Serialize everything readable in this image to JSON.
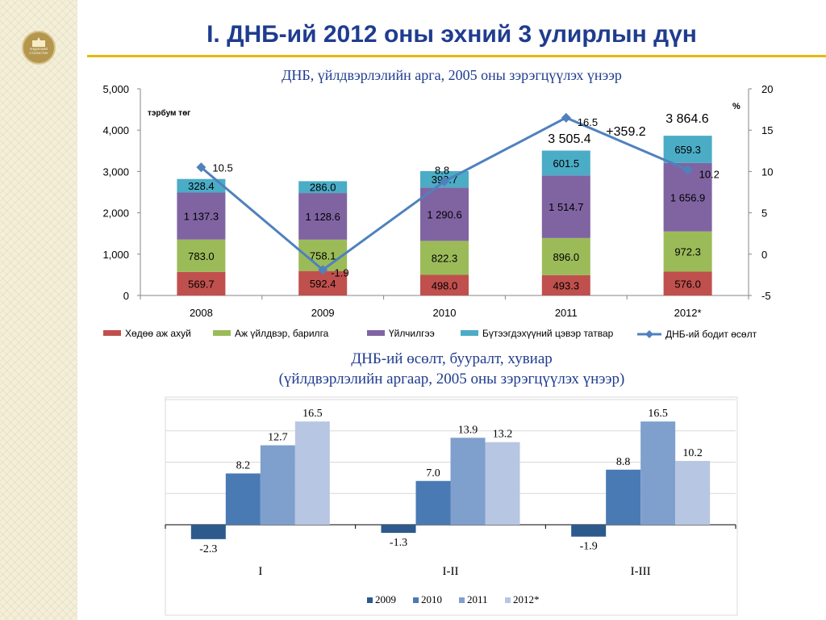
{
  "slide": {
    "title": "I. ДНБ-ий 2012 оны эхний 3 улирлын дүн",
    "logo_text": "ҮНДЭСНИЙ СТАТИСТИК"
  },
  "colors": {
    "agriculture": "#c0504d",
    "industry": "#9bbb59",
    "services": "#8064a2",
    "taxes": "#4bacc6",
    "growth": "#4f81bd",
    "c2009": "#2c5a8c",
    "c2010": "#4a7ab4",
    "c2011": "#7f9fcd",
    "c2012": "#b7c6e2",
    "title": "#1f3c8f"
  },
  "chart_data": [
    {
      "type": "bar",
      "stacked": true,
      "title": "ДНБ, үйлдвэрлэлийн арга, 2005 оны зэрэгцүүлэх үнээр",
      "left_unit": "тэрбум төг",
      "right_unit": "%",
      "categories": [
        "2008",
        "2009",
        "2010",
        "2011",
        "2012*"
      ],
      "ylim": [
        0,
        5000
      ],
      "yticks": [
        "0",
        "1,000",
        "2,000",
        "3,000",
        "4,000",
        "5,000"
      ],
      "y2lim": [
        -5,
        20
      ],
      "y2ticks": [
        "-5",
        "0",
        "5",
        "10",
        "15",
        "20"
      ],
      "series": [
        {
          "name": "Хөдөө аж ахуй",
          "key": "agriculture",
          "values": [
            569.7,
            592.4,
            498.0,
            493.3,
            576.0
          ],
          "labels": [
            "569.7",
            "592.4",
            "498.0",
            "493.3",
            "576.0"
          ]
        },
        {
          "name": "Аж үйлдвэр, барилга",
          "key": "industry",
          "values": [
            783.0,
            758.1,
            822.3,
            896.0,
            972.3
          ],
          "labels": [
            "783.0",
            "758.1",
            "822.3",
            "896.0",
            "972.3"
          ]
        },
        {
          "name": "Үйлчилгээ",
          "key": "services",
          "values": [
            1137.3,
            1128.6,
            1290.6,
            1514.7,
            1656.9
          ],
          "labels": [
            "1 137.3",
            "1 128.6",
            "1 290.6",
            "1 514.7",
            "1 656.9"
          ]
        },
        {
          "name": "Бүтээгдэхүүний цэвэр татвар",
          "key": "taxes",
          "values": [
            328.4,
            286.0,
            398.7,
            601.5,
            659.3
          ],
          "labels": [
            "328.4",
            "286.0",
            "398.7",
            "601.5",
            "659.3"
          ]
        }
      ],
      "line": {
        "name": "ДНБ-ий бодит өсөлт",
        "values": [
          10.5,
          -1.9,
          8.8,
          16.5,
          10.2
        ],
        "labels": [
          "10.5",
          "-1.9",
          "8.8",
          "16.5",
          "10.2"
        ]
      },
      "annotations": [
        "3 505.4",
        "3 864.6",
        "+359.2"
      ]
    },
    {
      "type": "bar",
      "title_line1": "ДНБ-ий өсөлт, бууралт, хувиар",
      "title_line2": "(үйлдвэрлэлийн аргаар, 2005 оны зэрэгцүүлэх үнээр)",
      "categories": [
        "I",
        "I-II",
        "I-III"
      ],
      "ylim": [
        -4,
        20
      ],
      "series": [
        {
          "name": "2009",
          "key": "c2009",
          "values": [
            -2.3,
            -1.3,
            -1.9
          ],
          "labels": [
            "-2.3",
            "-1.3",
            "-1.9"
          ]
        },
        {
          "name": "2010",
          "key": "c2010",
          "values": [
            8.2,
            7.0,
            8.8
          ],
          "labels": [
            "8.2",
            "7.0",
            "8.8"
          ]
        },
        {
          "name": "2011",
          "key": "c2011",
          "values": [
            12.7,
            13.9,
            16.5
          ],
          "labels": [
            "12.7",
            "13.9",
            "16.5"
          ]
        },
        {
          "name": "2012*",
          "key": "c2012",
          "values": [
            16.5,
            13.2,
            10.2
          ],
          "labels": [
            "16.5",
            "13.2",
            "10.2"
          ]
        }
      ]
    }
  ]
}
